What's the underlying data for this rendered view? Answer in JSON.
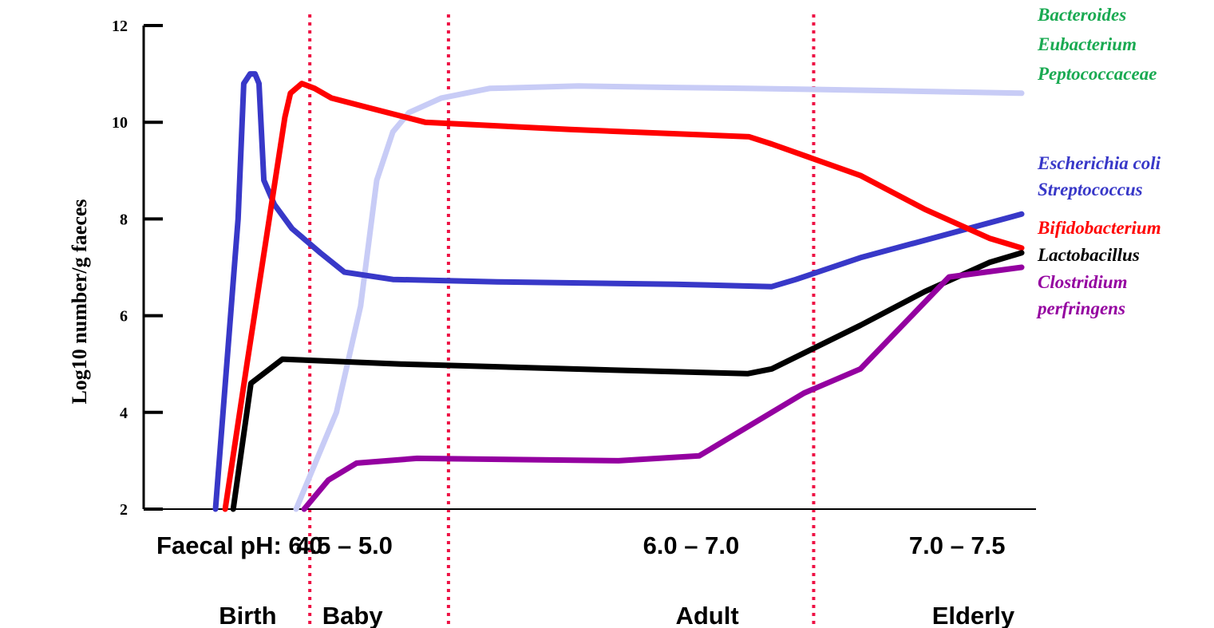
{
  "chart_data": {
    "type": "line",
    "title": "",
    "ylabel": "Log10 number/g faeces",
    "ylim": [
      2,
      12
    ],
    "yticks": [
      2,
      4,
      6,
      8,
      10,
      12
    ],
    "ytick_labels": [
      "2",
      "4",
      "6",
      "8",
      "10",
      "12"
    ],
    "x_range": [
      0,
      100
    ],
    "ph_labels": [
      "Faecal pH: 6.0",
      "4.5 – 5.0",
      "6.0 – 7.0",
      "7.0 – 7.5"
    ],
    "ph_positions": [
      3,
      16,
      59,
      92
    ],
    "stage_labels": [
      "Birth",
      "Baby",
      "Adult",
      "Elderly"
    ],
    "stage_positions": [
      4,
      17,
      61,
      94
    ],
    "dividers": [
      11.7,
      28.9,
      74.2
    ],
    "divider_color": "#ee1144",
    "series": [
      {
        "name": "Bacteroides Eubacterium Peptococcaceae",
        "color": "#c8ccf6",
        "legend_color": "#1aaa52",
        "x": [
          10,
          15,
          18,
          20,
          22,
          24,
          28,
          34,
          45,
          57,
          66,
          74,
          84,
          100
        ],
        "y": [
          2.0,
          4.0,
          6.2,
          8.8,
          9.8,
          10.2,
          10.5,
          10.7,
          10.75,
          10.72,
          10.7,
          10.68,
          10.65,
          10.6
        ]
      },
      {
        "name": "Escherichia coli Streptococcus",
        "color": "#3838c8",
        "legend_color": "#3838c8",
        "x": [
          0,
          2.8,
          3.5,
          4.3,
          4.9,
          5.4,
          6.0,
          7.3,
          9.5,
          13,
          16,
          22,
          35,
          57,
          69,
          72,
          80,
          100
        ],
        "y": [
          2.0,
          8.0,
          10.8,
          11.0,
          11.0,
          10.8,
          8.8,
          8.3,
          7.8,
          7.3,
          6.9,
          6.75,
          6.7,
          6.65,
          6.6,
          6.75,
          7.2,
          8.1
        ]
      },
      {
        "name": "Bifidobacterium",
        "color": "#ff0000",
        "legend_color": "#ff0000",
        "x": [
          1.2,
          3.9,
          8.6,
          9.3,
          10.7,
          12.3,
          14.4,
          19,
          26,
          44,
          66.2,
          69,
          80,
          88,
          96,
          100
        ],
        "y": [
          2.0,
          5.0,
          10.1,
          10.6,
          10.8,
          10.7,
          10.5,
          10.3,
          10.0,
          9.85,
          9.7,
          9.55,
          8.9,
          8.2,
          7.6,
          7.4
        ]
      },
      {
        "name": "Lactobacillus",
        "color": "#000000",
        "legend_color": "#000000",
        "x": [
          2.2,
          4.4,
          8.3,
          23,
          44,
          66,
          69,
          80,
          88,
          96,
          100
        ],
        "y": [
          2.0,
          4.6,
          5.1,
          5.0,
          4.9,
          4.8,
          4.9,
          5.8,
          6.5,
          7.1,
          7.3
        ]
      },
      {
        "name": "Clostridium perfringens",
        "color": "#9400a0",
        "legend_color": "#9400a0",
        "x": [
          11,
          14,
          17.5,
          25,
          50,
          60,
          65,
          73,
          80,
          91,
          100
        ],
        "y": [
          2.0,
          2.6,
          2.95,
          3.05,
          3.0,
          3.1,
          3.6,
          4.4,
          4.9,
          6.8,
          7.0
        ]
      }
    ],
    "legend": [
      {
        "lines": [
          "Bacteroides",
          "Eubacterium",
          "Peptococcaceae"
        ],
        "color": "#1aaa52"
      },
      {
        "lines": [
          "Escherichia coli",
          "Streptococcus"
        ],
        "color": "#3838c8"
      },
      {
        "lines": [
          "Bifidobacterium"
        ],
        "color": "#ff0000"
      },
      {
        "lines": [
          "Lactobacillus"
        ],
        "color": "#000000"
      },
      {
        "lines": [
          "Clostridium",
          "perfringens"
        ],
        "color": "#9400a0"
      }
    ],
    "legend_placement": "right"
  }
}
